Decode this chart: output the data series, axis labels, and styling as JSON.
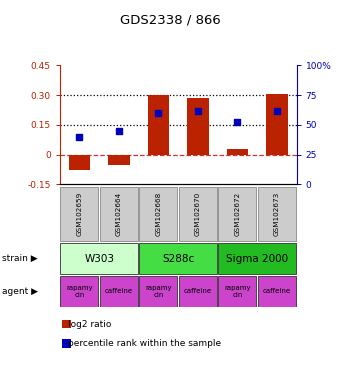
{
  "title": "GDS2338 / 866",
  "samples": [
    "GSM102659",
    "GSM102664",
    "GSM102668",
    "GSM102670",
    "GSM102672",
    "GSM102673"
  ],
  "log2_ratios": [
    -0.08,
    -0.055,
    0.3,
    0.285,
    0.03,
    0.305
  ],
  "percentile_ranks": [
    40,
    45,
    60,
    62,
    52,
    62
  ],
  "ylim_left": [
    -0.15,
    0.45
  ],
  "ylim_right": [
    0,
    100
  ],
  "yticks_left": [
    -0.15,
    0.0,
    0.15,
    0.3,
    0.45
  ],
  "yticks_right": [
    0,
    25,
    50,
    75,
    100
  ],
  "ytick_labels_left": [
    "-0.15",
    "0",
    "0.15",
    "0.30",
    "0.45"
  ],
  "ytick_labels_right": [
    "0",
    "25",
    "50",
    "75",
    "100%"
  ],
  "hlines": [
    0.15,
    0.3
  ],
  "bar_color": "#bb2200",
  "dot_color": "#0000bb",
  "zero_line_color": "#cc3333",
  "strains": [
    {
      "label": "W303",
      "cols": [
        0,
        1
      ],
      "color": "#ccffcc"
    },
    {
      "label": "S288c",
      "cols": [
        2,
        3
      ],
      "color": "#44dd44"
    },
    {
      "label": "Sigma 2000",
      "cols": [
        4,
        5
      ],
      "color": "#22bb22"
    }
  ],
  "agent_labels": [
    "rapamycin",
    "caffeine",
    "rapamycin",
    "caffeine",
    "rapamycin",
    "caffeine"
  ],
  "agent_color": "#cc44cc",
  "sample_bg_color": "#cccccc",
  "legend_bar_label": "log2 ratio",
  "legend_dot_label": "percentile rank within the sample",
  "strain_row_label": "strain",
  "agent_row_label": "agent"
}
